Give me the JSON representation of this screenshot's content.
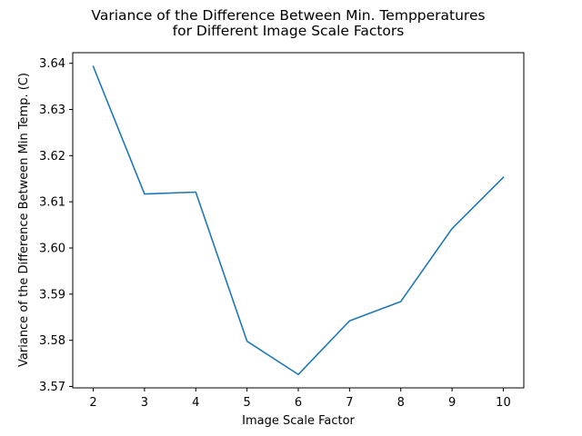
{
  "chart_data": {
    "type": "line",
    "title_lines": [
      "Variance of the Difference Between Min. Tempperatures",
      "for Different Image Scale Factors"
    ],
    "xlabel": "Image Scale Factor",
    "ylabel": "Variance of the Difference Between Min Temp. (C)",
    "x_ticks": [
      "2",
      "3",
      "4",
      "5",
      "6",
      "7",
      "8",
      "9",
      "10"
    ],
    "y_ticks": [
      "3.57",
      "3.58",
      "3.59",
      "3.60",
      "3.61",
      "3.62",
      "3.63",
      "3.64"
    ],
    "xlim": [
      1.6,
      10.4
    ],
    "ylim": [
      3.5697,
      3.6423
    ],
    "grid": false,
    "legend": "none",
    "series": [
      {
        "color": "#1f77b4",
        "x": [
          2,
          3,
          4,
          5,
          6,
          7,
          8,
          9,
          10
        ],
        "y": [
          3.6393,
          3.6117,
          3.6121,
          3.5798,
          3.5726,
          3.5842,
          3.5884,
          3.6042,
          3.6153
        ]
      }
    ]
  }
}
